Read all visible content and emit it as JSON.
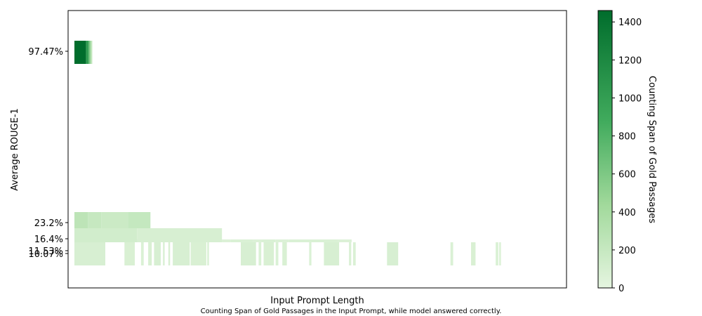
{
  "chart_data": {
    "type": "heatmap",
    "xlabel": "Input Prompt Length",
    "ylabel": "Average ROUGE-1",
    "caption": "Counting Span of Gold Passages in the Input Prompt, while model answered correctly.",
    "y_ticks": [
      "97.47%",
      "23.2%",
      "16.4%",
      "11.53%",
      "10.07%"
    ],
    "colorbar": {
      "label": "Counting Span of Gold Passages",
      "min": 0,
      "max": 1460,
      "ticks": [
        0,
        200,
        400,
        600,
        800,
        1000,
        1200,
        1400
      ],
      "color_low": "#e5f5e0",
      "color_high": "#006d2c"
    },
    "series": [
      {
        "y": "97.47%",
        "x_range": [
          0,
          4
        ],
        "segments": [
          [
            0,
            2.6,
            1460
          ],
          [
            2.6,
            3.2,
            1000
          ],
          [
            3.2,
            3.6,
            600
          ],
          [
            3.6,
            4.0,
            250
          ]
        ]
      },
      {
        "y": "23.2%",
        "x_range": [
          0,
          17
        ],
        "segments": [
          [
            0,
            3,
            260
          ],
          [
            3,
            6,
            200
          ],
          [
            6,
            12,
            170
          ],
          [
            12,
            17,
            210
          ]
        ]
      },
      {
        "y": "16.4%",
        "x_range": [
          0,
          33
        ],
        "segments": [
          [
            0,
            14,
            130
          ],
          [
            14,
            33,
            90
          ]
        ]
      },
      {
        "y": "11.53%",
        "x_range": [
          0,
          62
        ],
        "segments": [
          [
            0,
            6,
            110
          ],
          [
            6,
            9,
            70
          ],
          [
            9,
            10,
            60
          ],
          [
            10,
            15,
            90
          ],
          [
            15,
            33,
            80
          ],
          [
            33,
            35,
            60
          ],
          [
            35,
            40,
            70
          ],
          [
            40,
            42,
            60
          ],
          [
            42,
            45,
            70
          ],
          [
            45,
            48,
            60
          ],
          [
            48,
            59,
            70
          ],
          [
            59,
            62,
            60
          ]
        ]
      },
      {
        "y": "10.07%",
        "segments": [
          [
            0,
            6.9,
            90
          ],
          [
            11.2,
            13.5,
            80
          ],
          [
            14.9,
            15.5,
            70
          ],
          [
            16.5,
            17.3,
            80
          ],
          [
            17.8,
            19.3,
            90
          ],
          [
            19.8,
            20.2,
            70
          ],
          [
            21.0,
            21.4,
            80
          ],
          [
            22.0,
            25.8,
            90
          ],
          [
            26.0,
            29.5,
            80
          ],
          [
            29.7,
            30.1,
            70
          ],
          [
            37.2,
            40.6,
            90
          ],
          [
            41.2,
            41.8,
            70
          ],
          [
            42.3,
            44.6,
            80
          ],
          [
            45.0,
            45.6,
            70
          ],
          [
            46.5,
            47.5,
            80
          ],
          [
            52.5,
            53.0,
            70
          ],
          [
            55.8,
            59.2,
            90
          ],
          [
            61.4,
            61.9,
            70
          ],
          [
            62.3,
            62.9,
            70
          ],
          [
            69.9,
            72.4,
            90
          ],
          [
            84.1,
            84.7,
            70
          ],
          [
            88.7,
            89.7,
            80
          ],
          [
            94.2,
            94.8,
            70
          ],
          [
            95.0,
            95.4,
            70
          ]
        ]
      }
    ]
  }
}
